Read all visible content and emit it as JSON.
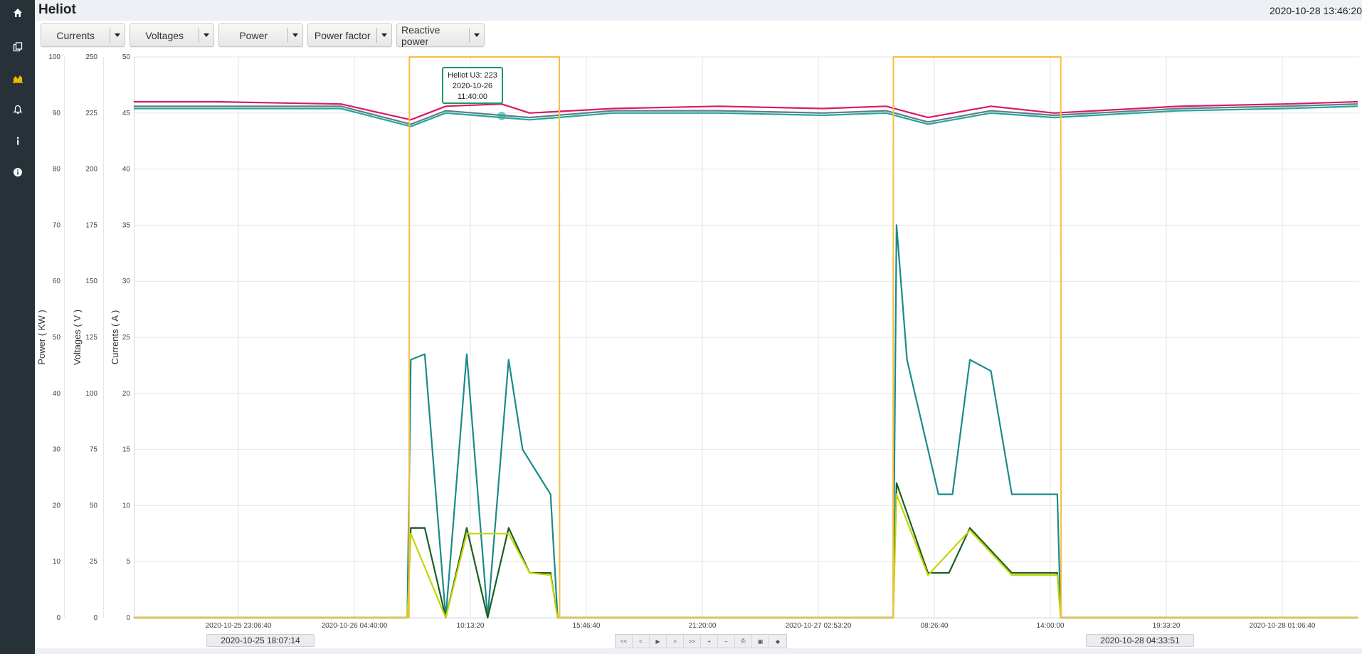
{
  "header": {
    "title": "Heliot",
    "datetime": "2020-10-28 13:46:20"
  },
  "sidebar": {
    "items": [
      {
        "icon": "home-icon"
      },
      {
        "icon": "copy-icon"
      },
      {
        "icon": "area-chart-icon",
        "active": true
      },
      {
        "icon": "bell-icon"
      },
      {
        "icon": "info-icon"
      },
      {
        "icon": "info-circle-icon"
      }
    ]
  },
  "toolbar": {
    "buttons": [
      {
        "label": "Currents"
      },
      {
        "label": "Voltages"
      },
      {
        "label": "Power"
      },
      {
        "label": "Power factor"
      },
      {
        "label": "Reactive power"
      }
    ]
  },
  "tooltip": {
    "series": "Heliot U3: 223",
    "date": "2020-10-26",
    "time": "11:40:00"
  },
  "range": {
    "start": "2020-10-25 18:07:14",
    "end": "2020-10-28 04:33:51"
  },
  "navigator": {
    "buttons": [
      "first-icon",
      "prev-icon",
      "play-icon",
      "next-icon",
      "last-icon",
      "zoom-in-icon",
      "zoom-out-icon",
      "print-icon",
      "save-icon",
      "tag-icon"
    ],
    "glyphs": [
      "<<",
      "<",
      "▶",
      ">",
      ">>",
      "+",
      "−",
      "⎙",
      "▣",
      "◆"
    ]
  },
  "colors": {
    "sidebar_bg": "#263238",
    "header_bg": "#edf0f4",
    "active_icon": "#f5b800",
    "voltage_u1": "#d81b60",
    "voltage_u2": "#607d8b",
    "voltage_u3": "#26a69a",
    "current_i1": "#1b8a8a",
    "current_i2": "#1b5e20",
    "current_i3": "#c6d500",
    "power": "#f6be44"
  },
  "chart_data": {
    "type": "line",
    "axes": {
      "power": {
        "label": "Power ( KW )",
        "range": [
          0,
          100
        ],
        "ticks": [
          0,
          10,
          20,
          30,
          40,
          50,
          60,
          70,
          80,
          90,
          100
        ]
      },
      "voltage": {
        "label": "Voltages ( V )",
        "range": [
          0,
          250
        ],
        "ticks": [
          0,
          25,
          50,
          75,
          100,
          125,
          150,
          175,
          200,
          225,
          250
        ]
      },
      "current": {
        "label": "Currents ( A )",
        "range": [
          0,
          50
        ],
        "ticks": [
          0,
          5,
          10,
          15,
          20,
          25,
          30,
          35,
          40,
          45,
          50
        ]
      }
    },
    "x_range": [
      "2020-10-25 18:07:14",
      "2020-10-28 04:33:51"
    ],
    "x_ticks": [
      "2020-10-25 23:06:40",
      "2020-10-26 04:40:00",
      "10:13:20",
      "15:46:40",
      "21:20:00",
      "2020-10-27 02:53:20",
      "08:26:40",
      "14:00:00",
      "19:33:20",
      "2020-10-28 01:06:40"
    ],
    "grid": true,
    "series": [
      {
        "axis": "voltage",
        "color": "#d81b60",
        "x": [
          "2020-10-25 18:07",
          "2020-10-25 22:00",
          "2020-10-26 04:00",
          "2020-10-26 07:20",
          "2020-10-26 09:00",
          "2020-10-26 11:40",
          "2020-10-26 13:00",
          "2020-10-26 17:00",
          "2020-10-26 22:00",
          "2020-10-27 03:00",
          "2020-10-27 06:00",
          "2020-10-27 08:00",
          "2020-10-27 11:00",
          "2020-10-27 14:00",
          "2020-10-27 20:00",
          "2020-10-28 01:00",
          "2020-10-28 04:30"
        ],
        "values": [
          230,
          230,
          229,
          222,
          228,
          229,
          225,
          227,
          228,
          227,
          228,
          223,
          228,
          225,
          228,
          229,
          230
        ]
      },
      {
        "axis": "voltage",
        "color": "#607d8b",
        "x": [
          "2020-10-25 18:07",
          "2020-10-25 22:00",
          "2020-10-26 04:00",
          "2020-10-26 07:20",
          "2020-10-26 09:00",
          "2020-10-26 11:40",
          "2020-10-26 13:00",
          "2020-10-26 17:00",
          "2020-10-26 22:00",
          "2020-10-27 03:00",
          "2020-10-27 06:00",
          "2020-10-27 08:00",
          "2020-10-27 11:00",
          "2020-10-27 14:00",
          "2020-10-27 20:00",
          "2020-10-28 01:00",
          "2020-10-28 04:30"
        ],
        "values": [
          228,
          228,
          228,
          220,
          226,
          224,
          223,
          226,
          226,
          225,
          226,
          221,
          226,
          224,
          227,
          228,
          229
        ]
      },
      {
        "axis": "voltage",
        "color": "#26a69a",
        "x": [
          "2020-10-25 18:07",
          "2020-10-25 22:00",
          "2020-10-26 04:00",
          "2020-10-26 07:20",
          "2020-10-26 09:00",
          "2020-10-26 11:40",
          "2020-10-26 13:00",
          "2020-10-26 17:00",
          "2020-10-26 22:00",
          "2020-10-27 03:00",
          "2020-10-27 06:00",
          "2020-10-27 08:00",
          "2020-10-27 11:00",
          "2020-10-27 14:00",
          "2020-10-27 20:00",
          "2020-10-28 01:00",
          "2020-10-28 04:30"
        ],
        "values": [
          227,
          227,
          227,
          219,
          225,
          223,
          222,
          225,
          225,
          224,
          225,
          220,
          225,
          223,
          226,
          227,
          228
        ]
      },
      {
        "axis": "current",
        "color": "#1b8a8a",
        "x": [
          "2020-10-25 18:07",
          "2020-10-26 07:10",
          "2020-10-26 07:20",
          "2020-10-26 08:00",
          "2020-10-26 09:00",
          "2020-10-26 10:00",
          "2020-10-26 11:00",
          "2020-10-26 12:00",
          "2020-10-26 12:40",
          "2020-10-26 13:40",
          "2020-10-26 14:00",
          "2020-10-26 14:20",
          "2020-10-27 06:20",
          "2020-10-27 06:30",
          "2020-10-27 07:00",
          "2020-10-27 08:30",
          "2020-10-27 09:10",
          "2020-10-27 10:00",
          "2020-10-27 11:00",
          "2020-10-27 12:00",
          "2020-10-27 13:00",
          "2020-10-27 14:10",
          "2020-10-27 14:20",
          "2020-10-28 04:30"
        ],
        "values": [
          0,
          0,
          23,
          23.5,
          0,
          23.5,
          0,
          23,
          15,
          12,
          11,
          0,
          0,
          35,
          23,
          11,
          11,
          23,
          22,
          11,
          11,
          11,
          0,
          0
        ]
      },
      {
        "axis": "current",
        "color": "#1b5e20",
        "x": [
          "2020-10-25 18:07",
          "2020-10-26 07:10",
          "2020-10-26 07:20",
          "2020-10-26 08:00",
          "2020-10-26 09:00",
          "2020-10-26 10:00",
          "2020-10-26 11:00",
          "2020-10-26 12:00",
          "2020-10-26 13:00",
          "2020-10-26 14:00",
          "2020-10-26 14:20",
          "2020-10-27 06:20",
          "2020-10-27 06:30",
          "2020-10-27 08:00",
          "2020-10-27 09:00",
          "2020-10-27 10:00",
          "2020-10-27 12:00",
          "2020-10-27 13:00",
          "2020-10-27 14:10",
          "2020-10-27 14:20",
          "2020-10-28 04:30"
        ],
        "values": [
          0,
          0,
          8,
          8,
          0,
          8,
          0,
          8,
          4,
          4,
          0,
          0,
          12,
          4,
          4,
          8,
          4,
          4,
          4,
          0,
          0
        ]
      },
      {
        "axis": "current",
        "color": "#c6d500",
        "x": [
          "2020-10-25 18:07",
          "2020-10-26 07:10",
          "2020-10-26 07:20",
          "2020-10-26 09:00",
          "2020-10-26 10:00",
          "2020-10-26 12:00",
          "2020-10-26 13:00",
          "2020-10-26 14:00",
          "2020-10-26 14:20",
          "2020-10-27 06:20",
          "2020-10-27 06:30",
          "2020-10-27 08:00",
          "2020-10-27 10:00",
          "2020-10-27 12:00",
          "2020-10-27 14:10",
          "2020-10-27 14:20",
          "2020-10-28 04:30"
        ],
        "values": [
          0,
          0,
          7.5,
          0,
          7.5,
          7.5,
          4,
          3.8,
          0,
          0,
          11,
          3.8,
          7.8,
          3.8,
          3.8,
          0,
          0
        ]
      },
      {
        "axis": "power",
        "color": "#f6be44",
        "note_free": true,
        "x": [
          "2020-10-25 18:07",
          "2020-10-26 07:15",
          "2020-10-26 07:16",
          "2020-10-26 14:25",
          "2020-10-26 14:26",
          "2020-10-27 06:20",
          "2020-10-27 06:21",
          "2020-10-27 14:20",
          "2020-10-27 14:21",
          "2020-10-28 04:30"
        ],
        "values": [
          0,
          0,
          100,
          100,
          0,
          0,
          100,
          100,
          0,
          0
        ]
      }
    ]
  }
}
